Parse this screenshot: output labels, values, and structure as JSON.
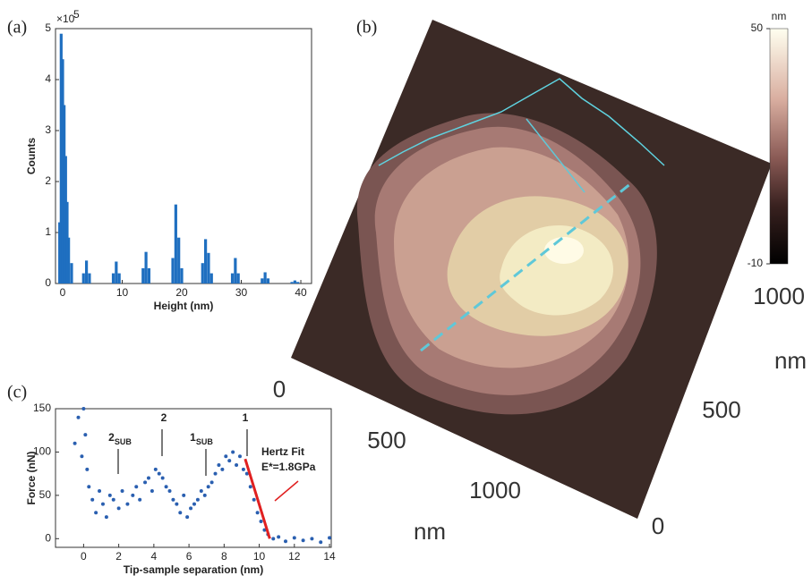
{
  "chart_data": [
    {
      "type": "bar",
      "panel_label": "(a)",
      "x_label": "Height (nm)",
      "y_label": "Counts",
      "y_multiplier": "×10",
      "y_multiplier_exp": "5",
      "color": "#1f6fc0",
      "x": [
        -0.5,
        -0.25,
        0,
        0.25,
        0.5,
        0.75,
        1,
        1.5,
        3.5,
        4,
        4.5,
        8.5,
        9,
        9.5,
        13.5,
        14,
        14.5,
        18.5,
        19,
        19.5,
        20,
        23.5,
        24,
        24.5,
        25,
        28.5,
        29,
        29.5,
        33.5,
        34,
        34.5,
        38.5,
        39,
        39.5
      ],
      "values": [
        1.2,
        4.9,
        4.4,
        3.5,
        2.5,
        1.6,
        0.9,
        0.4,
        0.2,
        0.45,
        0.2,
        0.2,
        0.43,
        0.2,
        0.3,
        0.62,
        0.3,
        0.5,
        1.55,
        0.9,
        0.3,
        0.4,
        0.87,
        0.6,
        0.2,
        0.2,
        0.5,
        0.2,
        0.1,
        0.22,
        0.1,
        0.03,
        0.06,
        0.03
      ],
      "xlim": [
        -1.2,
        41.8
      ],
      "xticks": [
        0,
        10,
        20,
        30,
        40
      ],
      "ylim": [
        0,
        5
      ],
      "yticks": [
        0,
        1,
        2,
        3,
        4,
        5
      ]
    },
    {
      "type": "image",
      "panel_label": "(b)",
      "color_unit": "nm",
      "clim": [
        -10,
        50
      ],
      "cticks": [
        -10,
        50
      ],
      "x_axis": {
        "ticks": [
          0,
          500,
          1000
        ],
        "label": "nm"
      },
      "y_axis": {
        "ticks": [
          0,
          500,
          1000
        ],
        "label": "nm"
      }
    },
    {
      "type": "scatter",
      "panel_label": "(c)",
      "x_label": "Tip-sample separation (nm)",
      "y_label": "Force (nN)",
      "color": "#2a5fb0",
      "x": [
        -0.5,
        -0.3,
        -0.1,
        0,
        0.1,
        0.2,
        0.3,
        0.5,
        0.7,
        0.9,
        1.1,
        1.3,
        1.5,
        1.7,
        2,
        2.2,
        2.5,
        2.8,
        3,
        3.2,
        3.5,
        3.7,
        3.9,
        4.1,
        4.3,
        4.5,
        4.7,
        4.9,
        5.1,
        5.3,
        5.5,
        5.7,
        5.9,
        6.1,
        6.3,
        6.5,
        6.7,
        6.9,
        7.1,
        7.3,
        7.5,
        7.7,
        7.9,
        8.1,
        8.3,
        8.5,
        8.7,
        8.9,
        9.1,
        9.3,
        9.5,
        9.7,
        9.9,
        10.1,
        10.3,
        10.5,
        10.8,
        11.1,
        11.5,
        12,
        12.5,
        13,
        13.5,
        14
      ],
      "values": [
        110,
        140,
        95,
        150,
        120,
        80,
        60,
        45,
        30,
        55,
        40,
        25,
        50,
        45,
        35,
        55,
        40,
        50,
        60,
        45,
        65,
        70,
        55,
        80,
        75,
        70,
        60,
        55,
        45,
        40,
        30,
        50,
        25,
        35,
        40,
        45,
        55,
        50,
        60,
        65,
        75,
        85,
        80,
        95,
        90,
        100,
        85,
        95,
        80,
        75,
        60,
        45,
        30,
        20,
        10,
        5,
        0,
        2,
        -3,
        1,
        -2,
        0,
        -4,
        1
      ],
      "fit": {
        "color": "#e02020",
        "x": [
          9.2,
          10.6
        ],
        "values": [
          92,
          0
        ]
      },
      "annotations": [
        {
          "text": "2",
          "sub": "SUB"
        },
        {
          "text": "2"
        },
        {
          "text": "1",
          "sub": "SUB"
        },
        {
          "text": "1"
        },
        {
          "text": "Hertz Fit"
        },
        {
          "text": "E*=1.8GPa"
        }
      ],
      "xlim": [
        -1.6,
        14.1
      ],
      "xticks": [
        0,
        2,
        4,
        6,
        8,
        10,
        12,
        14
      ],
      "ylim": [
        -10,
        150
      ],
      "yticks": [
        0,
        50,
        100,
        150
      ]
    }
  ]
}
